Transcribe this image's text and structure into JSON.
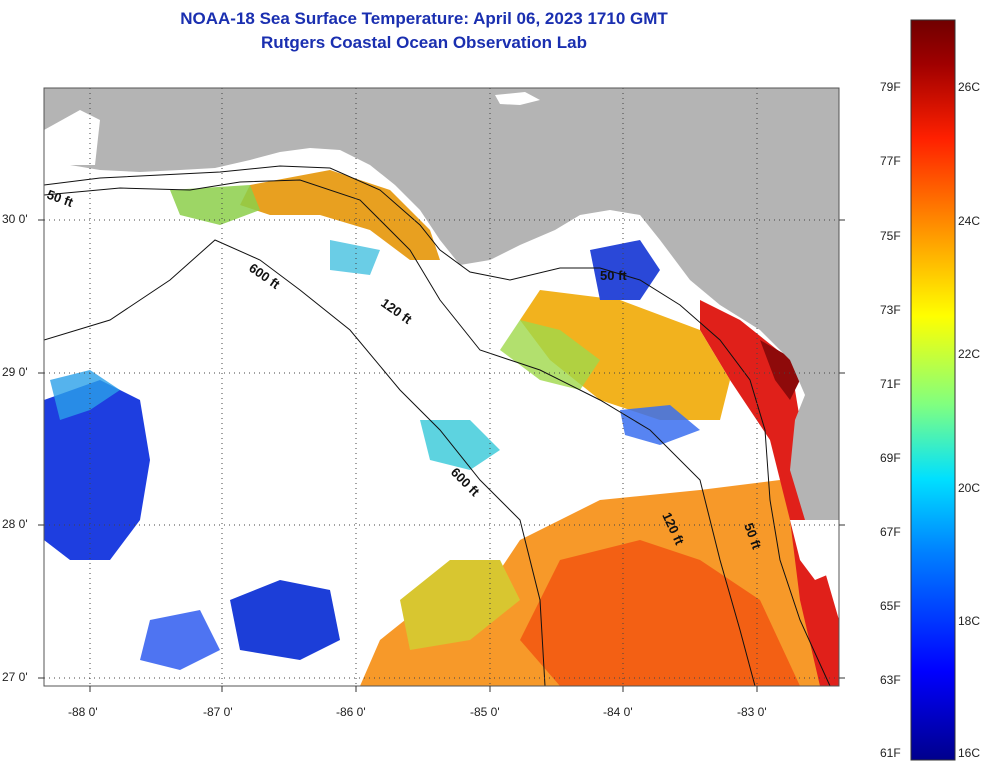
{
  "title": {
    "line1": "NOAA-18 Sea Surface Temperature:  April 06, 2023 1710 GMT",
    "line2": "Rutgers Coastal Ocean Observation Lab"
  },
  "map": {
    "lon_labels": [
      "-88 0'",
      "-87 0'",
      "-86 0'",
      "-85 0'",
      "-84 0'",
      "-83 0'"
    ],
    "lat_labels": [
      "30 0'",
      "29 0'",
      "28 0'",
      "27 0'"
    ],
    "contour_labels": {
      "c50_west": "50 ft",
      "c600_north": "600 ft",
      "c120_north": "120 ft",
      "c50_bay": "50 ft",
      "c600_south": "600 ft",
      "c120_south": "120 ft",
      "c50_south": "50 ft"
    },
    "colors": {
      "land": "#b4b4b4",
      "cloud": "#ffffff",
      "frame": "#555555"
    }
  },
  "colorbar": {
    "fahrenheit": [
      "79F",
      "77F",
      "75F",
      "73F",
      "71F",
      "69F",
      "67F",
      "65F",
      "63F",
      "61F"
    ],
    "celsius": [
      "26C",
      "24C",
      "22C",
      "20C",
      "18C",
      "16C"
    ],
    "gradient_stops": [
      "#00008c",
      "#0000ff",
      "#0080ff",
      "#00e0ff",
      "#80ff80",
      "#ffff00",
      "#ff9000",
      "#ff2000",
      "#a00000",
      "#700000"
    ]
  }
}
